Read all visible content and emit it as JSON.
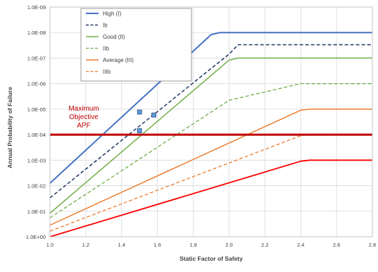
{
  "chart_data": {
    "type": "line",
    "xlabel": "Static Factor of Safety",
    "ylabel": "Annual Probability of Failure",
    "xlim": [
      1.0,
      2.8
    ],
    "x_ticks": [
      "1.0",
      "1.2",
      "1.4",
      "1.6",
      "1.8",
      "2.0",
      "2.2",
      "2.4",
      "2.6",
      "2.8"
    ],
    "y_scale": "log",
    "y_axis_direction": "1.0E+00 at bottom, 1.0E-09 at top",
    "y_ticks": [
      "1.0E-09",
      "1.0E-08",
      "1.0E-07",
      "1.0E-06",
      "1.0E-05",
      "1.0E-04",
      "1.0E-03",
      "1.0E-02",
      "1.0E-01",
      "1.0E+00"
    ],
    "ylim": [
      1.0,
      1e-09
    ],
    "grid": true,
    "legend_position": "top-left",
    "series": [
      {
        "name": "High (I)",
        "color": "#4472c4",
        "style": "solid",
        "width": 2,
        "x": [
          1.0,
          1.9,
          1.95,
          2.8
        ],
        "y": [
          0.008,
          1.2e-08,
          1e-08,
          1e-08
        ]
      },
      {
        "name": "Ib",
        "color": "#1f3864",
        "style": "dashed",
        "width": 1.5,
        "x": [
          1.0,
          2.0,
          2.05,
          2.8
        ],
        "y": [
          0.03,
          7e-08,
          3e-08,
          3e-08
        ]
      },
      {
        "name": "Good (II)",
        "color": "#70ad47",
        "style": "solid",
        "width": 1.5,
        "x": [
          1.0,
          2.0,
          2.05,
          2.8
        ],
        "y": [
          0.12,
          1.2e-07,
          1e-07,
          1e-07
        ]
      },
      {
        "name": "IIb",
        "color": "#70ad47",
        "style": "dashed",
        "width": 1.3,
        "x": [
          1.0,
          2.0,
          2.4,
          2.8
        ],
        "y": [
          0.18,
          4.5e-06,
          1e-06,
          1e-06
        ]
      },
      {
        "name": "Average (III)",
        "color": "#ed7d31",
        "style": "solid",
        "width": 1.5,
        "x": [
          1.0,
          2.4,
          2.45,
          2.8
        ],
        "y": [
          0.35,
          1.1e-05,
          1e-05,
          1e-05
        ]
      },
      {
        "name": "IIIb",
        "color": "#ed7d31",
        "style": "dashed",
        "width": 1.3,
        "x": [
          1.0,
          2.4,
          2.45,
          2.8
        ],
        "y": [
          0.6,
          0.00011,
          0.0001,
          0.0001
        ]
      },
      {
        "name": "",
        "color": "#ff0000",
        "style": "solid",
        "width": 1.8,
        "x": [
          1.0,
          2.4,
          2.45,
          2.8
        ],
        "y": [
          1.0,
          0.0011,
          0.001,
          0.001
        ]
      }
    ],
    "objective_line": {
      "label_lines": [
        "Maximum",
        "Objective",
        "APF"
      ],
      "y": 0.0001,
      "color": "#c00000"
    },
    "points": [
      {
        "x": 1.5,
        "y": 1.3e-05
      },
      {
        "x": 1.58,
        "y": 1.7e-05
      },
      {
        "x": 1.5,
        "y": 7e-05
      }
    ],
    "marker_color": "#5b9bd5"
  }
}
